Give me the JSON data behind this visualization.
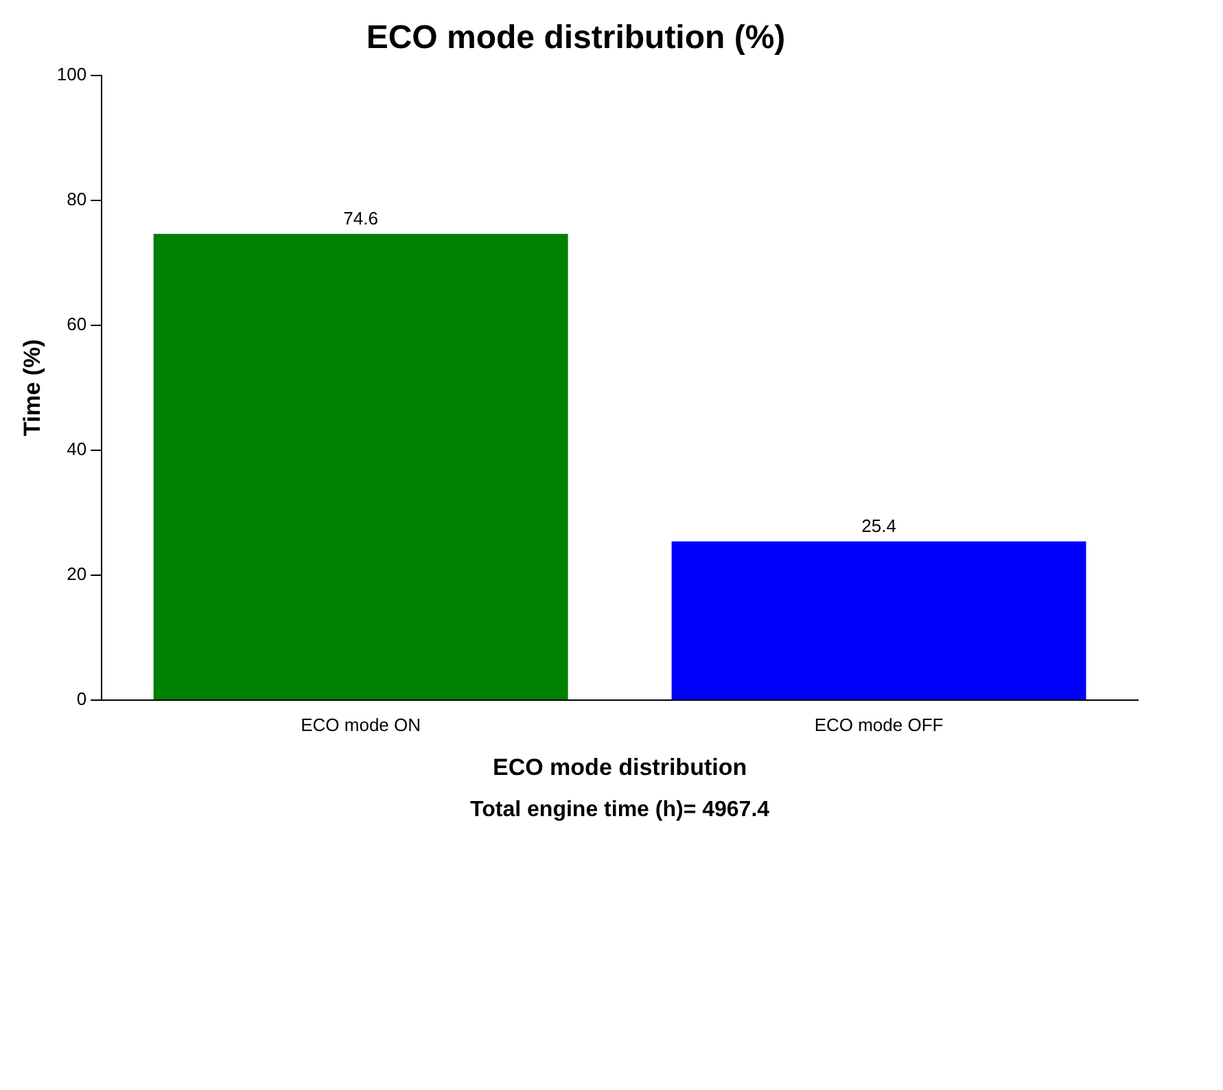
{
  "chart_data": {
    "type": "bar",
    "title": "ECO mode distribution (%)",
    "xlabel": "ECO mode distribution",
    "ylabel": "Time (%)",
    "categories": [
      "ECO mode ON",
      "ECO mode OFF"
    ],
    "values": [
      74.6,
      25.4
    ],
    "colors": [
      "#008000",
      "#0000ff"
    ],
    "ylim": [
      0,
      100
    ],
    "yticks": [
      0,
      20,
      40,
      60,
      80,
      100
    ],
    "grid": false,
    "legend": false,
    "data_labels": true,
    "annotations": [
      "Total engine time (h)= 4967.4"
    ]
  }
}
